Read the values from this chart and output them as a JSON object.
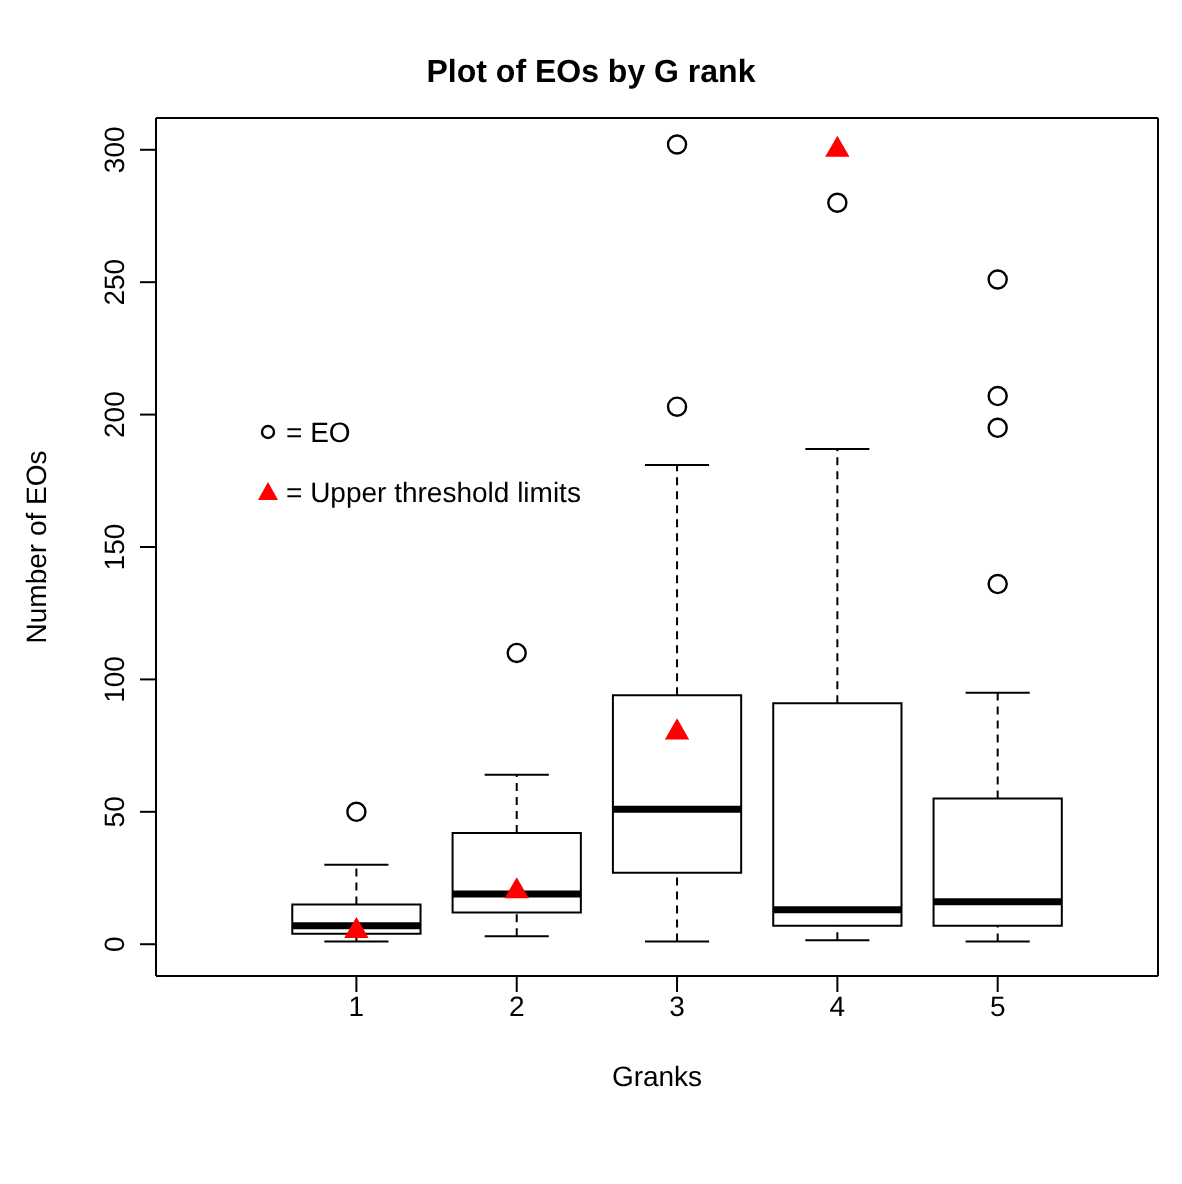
{
  "chart_data": {
    "type": "box",
    "title": "Plot of EOs by G rank",
    "xlabel": "Granks",
    "ylabel": "Number of EOs",
    "categories": [
      "1",
      "2",
      "3",
      "4",
      "5"
    ],
    "ylim": [
      -12,
      312
    ],
    "yticks": [
      0,
      50,
      100,
      150,
      200,
      250,
      300
    ],
    "grid": false,
    "legend": "top left",
    "series": [
      {
        "name": "= EO",
        "color": "#000000",
        "boxes": [
          {
            "low": 1,
            "q1": 4,
            "median": 7,
            "q3": 15,
            "high": 30,
            "outliers": [
              50
            ]
          },
          {
            "low": 3,
            "q1": 12,
            "median": 19,
            "q3": 42,
            "high": 64,
            "outliers": [
              110
            ]
          },
          {
            "low": 1,
            "q1": 27,
            "median": 51,
            "q3": 94,
            "high": 181,
            "outliers": [
              203,
              302
            ]
          },
          {
            "low": 1.5,
            "q1": 7,
            "median": 13,
            "q3": 91,
            "high": 187,
            "outliers": [
              280
            ]
          },
          {
            "low": 1,
            "q1": 7,
            "median": 16,
            "q3": 55,
            "high": 95,
            "outliers": [
              136,
              195,
              207,
              251
            ]
          }
        ]
      },
      {
        "name": "= Upper threshold limits",
        "type": "scatter",
        "color": "#ff0000",
        "marker": "triangle",
        "x": [
          "1",
          "2",
          "3",
          "4",
          "5"
        ],
        "values": [
          5,
          20,
          80,
          300,
          null
        ]
      }
    ]
  }
}
